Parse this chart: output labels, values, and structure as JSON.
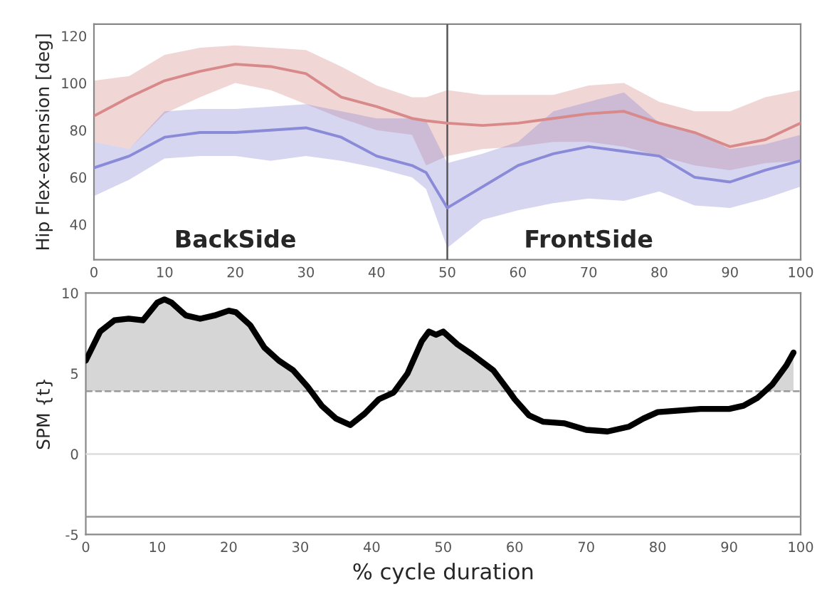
{
  "chart_data": [
    {
      "type": "line",
      "ylabel": "Hip Flex-extension [deg]",
      "xlim": [
        0,
        100
      ],
      "ylim": [
        25,
        125
      ],
      "xticks": [
        0,
        10,
        20,
        30,
        40,
        50,
        60,
        70,
        80,
        90,
        100
      ],
      "yticks": [
        40,
        60,
        80,
        100,
        120
      ],
      "grid": false,
      "legend": false,
      "x": [
        0,
        5,
        10,
        15,
        20,
        25,
        30,
        35,
        40,
        45,
        47,
        50,
        55,
        60,
        65,
        70,
        75,
        80,
        85,
        90,
        95,
        100
      ],
      "series": [
        {
          "color": "#d88a8a",
          "values": [
            86,
            94,
            101,
            105,
            108,
            107,
            104,
            94,
            90,
            85,
            84,
            83,
            82,
            83,
            85,
            87,
            88,
            83,
            79,
            73,
            76,
            83
          ],
          "upper": [
            101,
            103,
            112,
            115,
            116,
            115,
            114,
            107,
            99,
            94,
            94,
            97,
            95,
            95,
            95,
            99,
            100,
            92,
            88,
            88,
            94,
            97
          ],
          "lower": [
            75,
            72,
            87,
            94,
            100,
            97,
            91,
            85,
            80,
            78,
            65,
            69,
            72,
            73,
            75,
            75,
            73,
            69,
            65,
            63,
            66,
            67
          ]
        },
        {
          "color": "#8a8ad8",
          "values": [
            64,
            69,
            77,
            79,
            79,
            80,
            81,
            77,
            69,
            65,
            62,
            47,
            56,
            65,
            70,
            73,
            71,
            69,
            60,
            58,
            63,
            67
          ],
          "upper": [
            75,
            72,
            88,
            89,
            89,
            90,
            91,
            88,
            85,
            85,
            84,
            66,
            70,
            75,
            88,
            92,
            96,
            83,
            79,
            72,
            74,
            78
          ],
          "lower": [
            52,
            59,
            68,
            69,
            69,
            67,
            69,
            67,
            64,
            60,
            55,
            30,
            42,
            46,
            49,
            51,
            50,
            54,
            48,
            47,
            51,
            56
          ]
        }
      ],
      "ref_lines": [
        {
          "axis": "x",
          "value": 50,
          "color": "#555555"
        }
      ],
      "annotations": [
        "BackSide",
        "FrontSide"
      ]
    },
    {
      "type": "line",
      "ylabel": "SPM {t}",
      "xlabel": "% cycle duration",
      "xlim": [
        0,
        100
      ],
      "ylim": [
        -5,
        10
      ],
      "xticks": [
        0,
        10,
        20,
        30,
        40,
        50,
        60,
        70,
        80,
        90,
        100
      ],
      "yticks": [
        -5,
        0,
        5,
        10
      ],
      "grid": false,
      "legend": false,
      "x": [
        0,
        2,
        4,
        6,
        8,
        10,
        11,
        12,
        14,
        16,
        18,
        20,
        21,
        23,
        25,
        27,
        29,
        31,
        31.5,
        33,
        35,
        37,
        39,
        41,
        43,
        43.2,
        45,
        47,
        48,
        49,
        50,
        52,
        54,
        57,
        59.2,
        60,
        62,
        64,
        67,
        70,
        73,
        76,
        78,
        80,
        83,
        86,
        90,
        92,
        94,
        95,
        96,
        98,
        99
      ],
      "series": [
        {
          "color": "#000000",
          "values": [
            5.8,
            7.6,
            8.3,
            8.4,
            8.3,
            9.4,
            9.6,
            9.4,
            8.6,
            8.4,
            8.6,
            8.9,
            8.8,
            8.0,
            6.6,
            5.8,
            5.2,
            4.2,
            3.9,
            3.0,
            2.2,
            1.8,
            2.5,
            3.4,
            3.8,
            3.9,
            5.0,
            7.0,
            7.6,
            7.4,
            7.6,
            6.8,
            6.2,
            5.2,
            3.9,
            3.4,
            2.4,
            2.0,
            1.9,
            1.5,
            1.4,
            1.7,
            2.2,
            2.6,
            2.7,
            2.8,
            2.8,
            3.0,
            3.5,
            3.9,
            4.3,
            5.5,
            6.3
          ],
          "upper": [
            5.8,
            7.6,
            8.3,
            8.4,
            8.3,
            9.4,
            9.6,
            9.4,
            8.6,
            8.4,
            8.6,
            8.9,
            8.8,
            8.0,
            6.6,
            5.8,
            5.2,
            4.2,
            3.9,
            null,
            null,
            null,
            null,
            null,
            null,
            3.9,
            5.0,
            7.0,
            7.6,
            7.4,
            7.6,
            6.8,
            6.2,
            5.2,
            3.9,
            null,
            null,
            null,
            null,
            null,
            null,
            null,
            null,
            null,
            null,
            null,
            null,
            null,
            null,
            3.9,
            4.3,
            5.5,
            6.3
          ],
          "lower": [
            3.9,
            3.9,
            3.9,
            3.9,
            3.9,
            3.9,
            3.9,
            3.9,
            3.9,
            3.9,
            3.9,
            3.9,
            3.9,
            3.9,
            3.9,
            3.9,
            3.9,
            3.9,
            3.9,
            null,
            null,
            null,
            null,
            null,
            null,
            3.9,
            3.9,
            3.9,
            3.9,
            3.9,
            3.9,
            3.9,
            3.9,
            3.9,
            3.9,
            null,
            null,
            null,
            null,
            null,
            null,
            null,
            null,
            null,
            null,
            null,
            null,
            null,
            null,
            3.9,
            3.9,
            3.9,
            3.9
          ]
        }
      ],
      "ref_lines": [
        {
          "axis": "y",
          "value": 3.9,
          "color": "#999999",
          "line_style": "dashed"
        },
        {
          "axis": "y",
          "value": 0,
          "color": "#dddddd",
          "line_style": "solid"
        },
        {
          "axis": "y",
          "value": -3.9,
          "color": "#999999",
          "line_style": "solid"
        }
      ]
    }
  ]
}
